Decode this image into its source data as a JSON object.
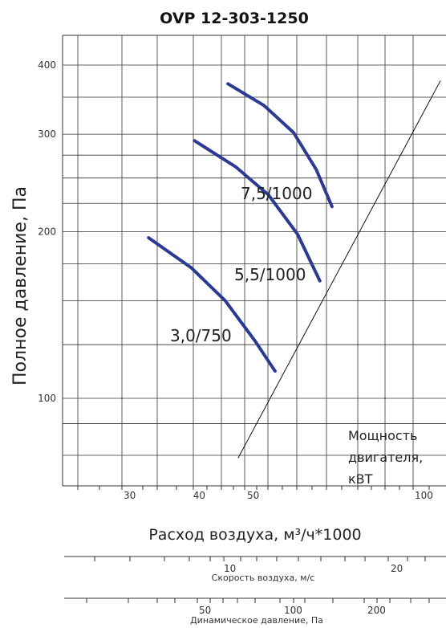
{
  "chart_data": {
    "type": "line",
    "title": "OVP 12-303-1250",
    "ylabel": "Полное давление, Па",
    "xlabel": "Расход воздуха, м³/ч*1000",
    "x_scale": "log",
    "y_scale": "log",
    "xlim": [
      25,
      110
    ],
    "ylim": [
      80,
      450
    ],
    "yticks": [
      100,
      200,
      300,
      400
    ],
    "xticks": [
      30,
      40,
      50,
      100
    ],
    "curve_color": "#2B3A92",
    "series": [
      {
        "name": "3,0/750",
        "x": [
          33.5,
          40,
          46,
          52,
          56.5
        ],
        "y": [
          195,
          172,
          150,
          127,
          112
        ]
      },
      {
        "name": "5,5/1000",
        "x": [
          40.5,
          48,
          55,
          62,
          68
        ],
        "y": [
          292,
          262,
          233,
          198,
          163
        ]
      },
      {
        "name": "7,5/1000",
        "x": [
          46.5,
          54,
          61,
          67,
          71.5
        ],
        "y": [
          370,
          338,
          302,
          259,
          222
        ]
      }
    ],
    "system_line": {
      "x": [
        48.5,
        112
      ],
      "y": [
        78,
        375
      ]
    },
    "annotation": [
      "Мощность",
      "двигателя,",
      "кВТ"
    ]
  },
  "scale_velocity": {
    "ticks": [
      "10",
      "20"
    ],
    "caption": "Скорость воздуха, м/с"
  },
  "scale_pressure": {
    "ticks": [
      "50",
      "100",
      "200"
    ],
    "caption": "Динамическое давление, Па"
  }
}
